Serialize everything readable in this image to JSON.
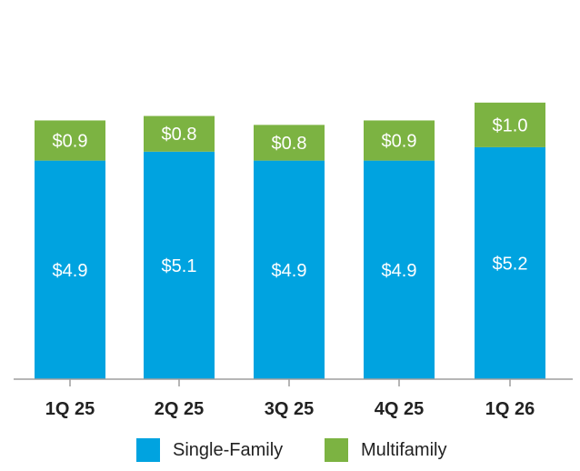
{
  "chart_data": {
    "type": "bar",
    "stacked": true,
    "categories": [
      "1Q 25",
      "2Q 25",
      "3Q 25",
      "4Q 25",
      "1Q 26"
    ],
    "series": [
      {
        "name": "Single-Family",
        "values": [
          4.9,
          5.1,
          4.9,
          4.9,
          5.2
        ],
        "labels": [
          "$4.9",
          "$5.1",
          "$4.9",
          "$4.9",
          "$5.2"
        ],
        "color": "#00A3E0"
      },
      {
        "name": "Multifamily",
        "values": [
          0.9,
          0.8,
          0.8,
          0.9,
          1.0
        ],
        "labels": [
          "$0.9",
          "$0.8",
          "$0.8",
          "$0.9",
          "$1.0"
        ],
        "color": "#7CB342"
      }
    ],
    "ylim": [
      0,
      8.5
    ],
    "grid": false,
    "legend": "bottom-center"
  }
}
